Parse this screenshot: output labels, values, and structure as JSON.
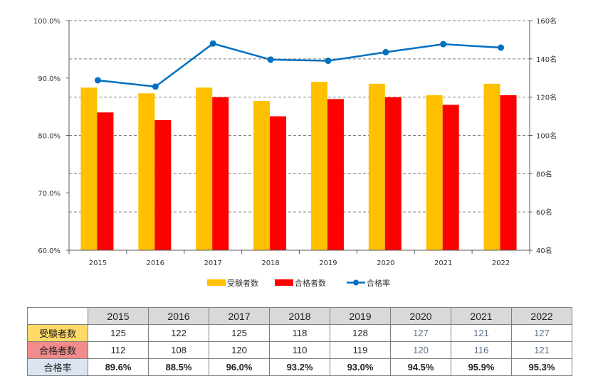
{
  "chart_data": {
    "type": "bar+line",
    "categories": [
      "2015",
      "2016",
      "2017",
      "2018",
      "2019",
      "2020",
      "2021",
      "2022"
    ],
    "series": [
      {
        "name": "受験者数",
        "type": "bar",
        "axis": "right",
        "color": "#ffc000",
        "values": [
          125,
          122,
          125,
          118,
          128,
          127,
          121,
          127
        ]
      },
      {
        "name": "合格者数",
        "type": "bar",
        "axis": "right",
        "color": "#ff0000",
        "values": [
          112,
          108,
          120,
          110,
          119,
          120,
          116,
          121
        ]
      },
      {
        "name": "合格率",
        "type": "line",
        "axis": "left",
        "color": "#0070c0",
        "values": [
          89.6,
          88.5,
          96.0,
          93.2,
          93.0,
          94.5,
          95.9,
          95.3
        ]
      }
    ],
    "y_left": {
      "ticks": [
        "100.0%",
        "90.0%",
        "80.0%",
        "70.0%",
        "60.0%"
      ],
      "range": [
        60,
        100
      ]
    },
    "y_right": {
      "ticks": [
        "160名",
        "140名",
        "120名",
        "100名",
        "80名",
        "60名",
        "40名"
      ],
      "range": [
        40,
        160
      ]
    },
    "legend_position": "bottom",
    "grid": true
  },
  "table": {
    "years": [
      "2015",
      "2016",
      "2017",
      "2018",
      "2019",
      "2020",
      "2021",
      "2022"
    ],
    "rows": [
      {
        "label": "受験者数",
        "color": "#ffd966",
        "key": "exam",
        "values": [
          "125",
          "122",
          "125",
          "118",
          "128",
          "127",
          "121",
          "127"
        ]
      },
      {
        "label": "合格者数",
        "color": "#f28b8b",
        "key": "pass",
        "values": [
          "112",
          "108",
          "120",
          "110",
          "119",
          "120",
          "116",
          "121"
        ]
      },
      {
        "label": "合格率",
        "color": "#dbe5f1",
        "key": "rate",
        "values": [
          "89.6%",
          "88.5%",
          "96.0%",
          "93.2%",
          "93.0%",
          "94.5%",
          "95.9%",
          "95.3%"
        ]
      }
    ]
  }
}
